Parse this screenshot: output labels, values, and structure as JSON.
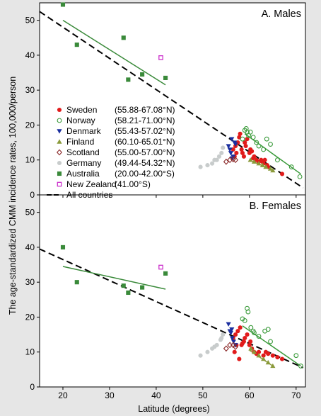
{
  "chart_data": {
    "type": "scatter",
    "ylabel": "The age-standardized CMM incidence rates, 100,000/person",
    "xlabel": "Latitude (degrees)",
    "xlim": [
      15,
      72
    ],
    "xticks": [
      20,
      30,
      40,
      50,
      60,
      70
    ],
    "colors": {
      "Sweden": "#e11b1b",
      "Norway": "#3a9a3a",
      "Denmark": "#1a2e9e",
      "Finland": "#8a9a3a",
      "Scotland": "#8b2a2a",
      "Germany": "#c8cccc",
      "Australia": "#3a8a3a",
      "New Zealand": "#cc33cc",
      "All countries": "#000000"
    },
    "legend": [
      {
        "country": "Sweden",
        "range": "(55.88-67.08°N)",
        "marker": "filled-circle"
      },
      {
        "country": "Norway",
        "range": "(58.21-71.00°N)",
        "marker": "open-circle"
      },
      {
        "country": "Denmark",
        "range": "(55.43-57.02°N)",
        "marker": "filled-triangle-down"
      },
      {
        "country": "Finland",
        "range": "(60.10-65.01°N)",
        "marker": "filled-triangle-up"
      },
      {
        "country": "Scotland",
        "range": "(55.00-57.00°N)",
        "marker": "open-diamond"
      },
      {
        "country": "Germany",
        "range": "(49.44-54.32°N)",
        "marker": "filled-circle"
      },
      {
        "country": "Australia",
        "range": "(20.00-42.00°S)",
        "marker": "filled-square"
      },
      {
        "country": "New Zealand",
        "range": "(41.00°S)",
        "marker": "open-square"
      },
      {
        "country": "All countries",
        "range": "",
        "marker": "dashed-line"
      }
    ],
    "panels": [
      {
        "title": "A. Males",
        "ylim": [
          0,
          55
        ],
        "yticks": [
          0,
          10,
          20,
          30,
          40,
          50
        ],
        "series": [
          {
            "name": "Sweden",
            "points": [
              [
                56.5,
                13
              ],
              [
                57,
                14
              ],
              [
                57.5,
                15
              ],
              [
                57.8,
                16.5
              ],
              [
                58,
                17.5
              ],
              [
                58.3,
                13
              ],
              [
                58.5,
                12
              ],
              [
                59,
                15
              ],
              [
                59.2,
                14
              ],
              [
                59.5,
                16
              ],
              [
                60,
                12
              ],
              [
                60.2,
                13
              ],
              [
                60.5,
                12.5
              ],
              [
                61,
                11
              ],
              [
                61.5,
                10
              ],
              [
                62,
                9.5
              ],
              [
                62.5,
                10
              ],
              [
                63,
                9
              ],
              [
                63.3,
                10
              ],
              [
                63.8,
                8.5
              ],
              [
                64,
                8
              ],
              [
                56.8,
                11
              ],
              [
                57.2,
                12
              ],
              [
                58.8,
                11
              ],
              [
                60.8,
                10.5
              ],
              [
                62.8,
                9.5
              ],
              [
                67,
                6
              ]
            ]
          },
          {
            "name": "Norway",
            "points": [
              [
                58.5,
                16
              ],
              [
                59,
                18.5
              ],
              [
                59.3,
                19
              ],
              [
                59.8,
                17
              ],
              [
                60.2,
                18
              ],
              [
                60.8,
                16.5
              ],
              [
                61.5,
                15
              ],
              [
                62,
                14
              ],
              [
                63,
                13
              ],
              [
                63.7,
                16
              ],
              [
                64.5,
                14.5
              ],
              [
                66,
                10
              ],
              [
                69,
                8
              ],
              [
                70.8,
                5.2
              ],
              [
                59.5,
                18
              ]
            ]
          },
          {
            "name": "Denmark",
            "points": [
              [
                55.5,
                14
              ],
              [
                55.8,
                13
              ],
              [
                56,
                12
              ],
              [
                56.3,
                10.5
              ],
              [
                56.5,
                11
              ],
              [
                56.8,
                15
              ],
              [
                57,
                14.5
              ],
              [
                56.2,
                16
              ]
            ]
          },
          {
            "name": "Finland",
            "points": [
              [
                60.2,
                10
              ],
              [
                61,
                9.5
              ],
              [
                62,
                9
              ],
              [
                62.8,
                8.5
              ],
              [
                63.5,
                8
              ],
              [
                64.5,
                7.5
              ],
              [
                65,
                7
              ]
            ]
          },
          {
            "name": "Scotland",
            "points": [
              [
                55,
                9.5
              ],
              [
                55.8,
                10
              ],
              [
                56.5,
                10.2
              ],
              [
                57,
                10
              ]
            ]
          },
          {
            "name": "Germany",
            "points": [
              [
                49.5,
                8
              ],
              [
                51,
                8.5
              ],
              [
                52,
                9
              ],
              [
                53,
                10
              ],
              [
                53.5,
                11
              ],
              [
                54,
                12
              ],
              [
                54.3,
                13.5
              ],
              [
                52.5,
                10
              ]
            ]
          },
          {
            "name": "Australia",
            "points": [
              [
                20,
                54.5
              ],
              [
                23,
                43
              ],
              [
                33,
                45
              ],
              [
                34,
                33
              ],
              [
                37,
                34.5
              ],
              [
                42,
                33.5
              ]
            ]
          },
          {
            "name": "New Zealand",
            "points": [
              [
                41,
                39.3
              ]
            ]
          }
        ],
        "fits": [
          {
            "series": "All countries",
            "from": [
              15,
              52.5
            ],
            "to": [
              71.5,
              2
            ]
          },
          {
            "series": "Australia",
            "from": [
              20,
              50
            ],
            "to": [
              42,
              31.5
            ]
          },
          {
            "series": "Norway",
            "from": [
              59,
              17.5
            ],
            "to": [
              71,
              6
            ]
          },
          {
            "series": "Finland",
            "from": [
              60,
              10
            ],
            "to": [
              65,
              7
            ]
          }
        ]
      },
      {
        "title": "B. Females",
        "ylim": [
          0,
          55
        ],
        "yticks": [
          0,
          10,
          20,
          30,
          40,
          50
        ],
        "series": [
          {
            "name": "Sweden",
            "points": [
              [
                56.5,
                14
              ],
              [
                57,
                15
              ],
              [
                57.5,
                16
              ],
              [
                58,
                17
              ],
              [
                58.3,
                12
              ],
              [
                58.8,
                13
              ],
              [
                59,
                14
              ],
              [
                59.5,
                15
              ],
              [
                60,
                12
              ],
              [
                60.5,
                11
              ],
              [
                61,
                10
              ],
              [
                61.5,
                9.5
              ],
              [
                62,
                10
              ],
              [
                63,
                9
              ],
              [
                63.5,
                10
              ],
              [
                64,
                9.5
              ],
              [
                65,
                9
              ],
              [
                66,
                8.5
              ],
              [
                67,
                8
              ],
              [
                56.8,
                10
              ],
              [
                57.2,
                12
              ],
              [
                57.8,
                8
              ],
              [
                58.5,
                12.5
              ],
              [
                60.2,
                13
              ]
            ]
          },
          {
            "name": "Norway",
            "points": [
              [
                58.5,
                19.5
              ],
              [
                59,
                19
              ],
              [
                59.5,
                22.5
              ],
              [
                59.7,
                21.5
              ],
              [
                60.3,
                17
              ],
              [
                60.8,
                16
              ],
              [
                61,
                15.5
              ],
              [
                62,
                14.5
              ],
              [
                63.3,
                16
              ],
              [
                64,
                16.5
              ],
              [
                64.5,
                13
              ],
              [
                70,
                9
              ],
              [
                71,
                6
              ]
            ]
          },
          {
            "name": "Denmark",
            "points": [
              [
                55.5,
                18
              ],
              [
                55.8,
                16
              ],
              [
                56,
                15.5
              ],
              [
                56.3,
                14
              ],
              [
                56.6,
                13
              ],
              [
                57,
                12
              ],
              [
                56.2,
                16.5
              ]
            ]
          },
          {
            "name": "Finland",
            "points": [
              [
                60.3,
                11
              ],
              [
                61,
                10
              ],
              [
                62,
                9
              ],
              [
                63,
                8
              ],
              [
                64,
                7
              ],
              [
                65,
                6
              ]
            ]
          },
          {
            "name": "Scotland",
            "points": [
              [
                55,
                11
              ],
              [
                55.8,
                12
              ],
              [
                56.5,
                12
              ],
              [
                57,
                11.5
              ]
            ]
          },
          {
            "name": "Germany",
            "points": [
              [
                49.5,
                9
              ],
              [
                51,
                10
              ],
              [
                52,
                11
              ],
              [
                53,
                12
              ],
              [
                53.8,
                13.5
              ],
              [
                54,
                14
              ],
              [
                54.3,
                15
              ],
              [
                52.5,
                11.5
              ]
            ]
          },
          {
            "name": "Australia",
            "points": [
              [
                20,
                40
              ],
              [
                23,
                30
              ],
              [
                33,
                29
              ],
              [
                34,
                27
              ],
              [
                37,
                28.5
              ],
              [
                42,
                32.5
              ]
            ]
          },
          {
            "name": "New Zealand",
            "points": [
              [
                41,
                34.3
              ]
            ]
          }
        ],
        "fits": [
          {
            "series": "All countries",
            "from": [
              15,
              39.5
            ],
            "to": [
              71.5,
              5.5
            ]
          },
          {
            "series": "Australia",
            "from": [
              20,
              34.5
            ],
            "to": [
              42,
              28
            ]
          },
          {
            "series": "Norway",
            "from": [
              58.5,
              17.5
            ],
            "to": [
              71,
              6
            ]
          },
          {
            "series": "Finland",
            "from": [
              60,
              10.5
            ],
            "to": [
              65,
              6
            ]
          }
        ]
      }
    ]
  }
}
